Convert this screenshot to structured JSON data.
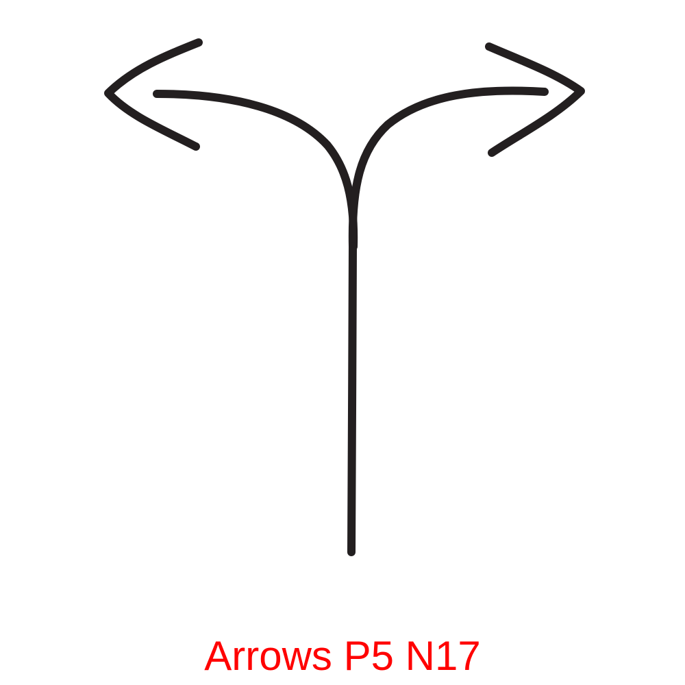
{
  "caption": {
    "text": "Arrows P5 N17",
    "color": "#ff0000"
  },
  "icon": {
    "name": "split-arrows-icon",
    "stroke_color": "#231f20"
  }
}
